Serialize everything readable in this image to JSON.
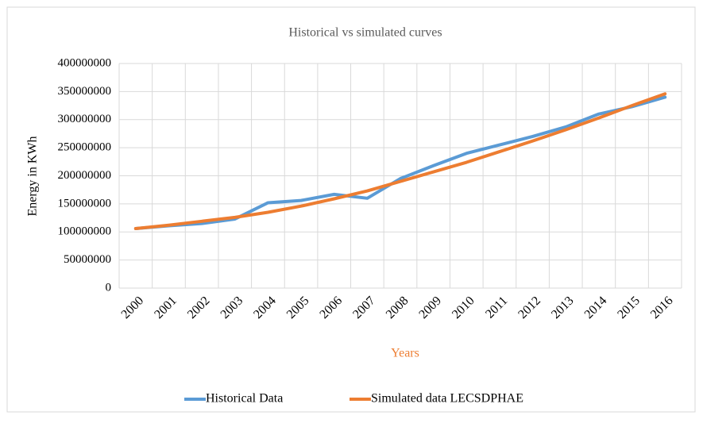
{
  "chart_data": {
    "type": "line",
    "title": "Historical vs simulated curves",
    "x_label": "Years",
    "y_label": "Energy in KWh",
    "categories": [
      "2000",
      "2001",
      "2002",
      "2003",
      "2004",
      "2005",
      "2006",
      "2007",
      "2008",
      "2009",
      "2010",
      "2011",
      "2012",
      "2013",
      "2014",
      "2015",
      "2016"
    ],
    "series": [
      {
        "name": "Historical Data",
        "color": "#5b9bd5",
        "values": [
          106000000,
          111000000,
          115000000,
          123000000,
          152000000,
          156000000,
          167000000,
          160000000,
          195000000,
          218000000,
          240000000,
          255000000,
          270000000,
          287000000,
          310000000,
          323000000,
          340000000
        ]
      },
      {
        "name": "Simulated data LECSDPHAE",
        "color": "#ed7d31",
        "values": [
          106000000,
          112000000,
          119000000,
          126000000,
          135000000,
          146000000,
          159000000,
          173000000,
          190000000,
          207000000,
          224000000,
          243000000,
          262000000,
          282000000,
          303000000,
          325000000,
          346000000
        ]
      }
    ],
    "ylim": [
      0,
      400000000
    ],
    "yticks": [
      0,
      50000000,
      100000000,
      150000000,
      200000000,
      250000000,
      300000000,
      350000000,
      400000000
    ],
    "grid": true,
    "legend": "bottom"
  }
}
